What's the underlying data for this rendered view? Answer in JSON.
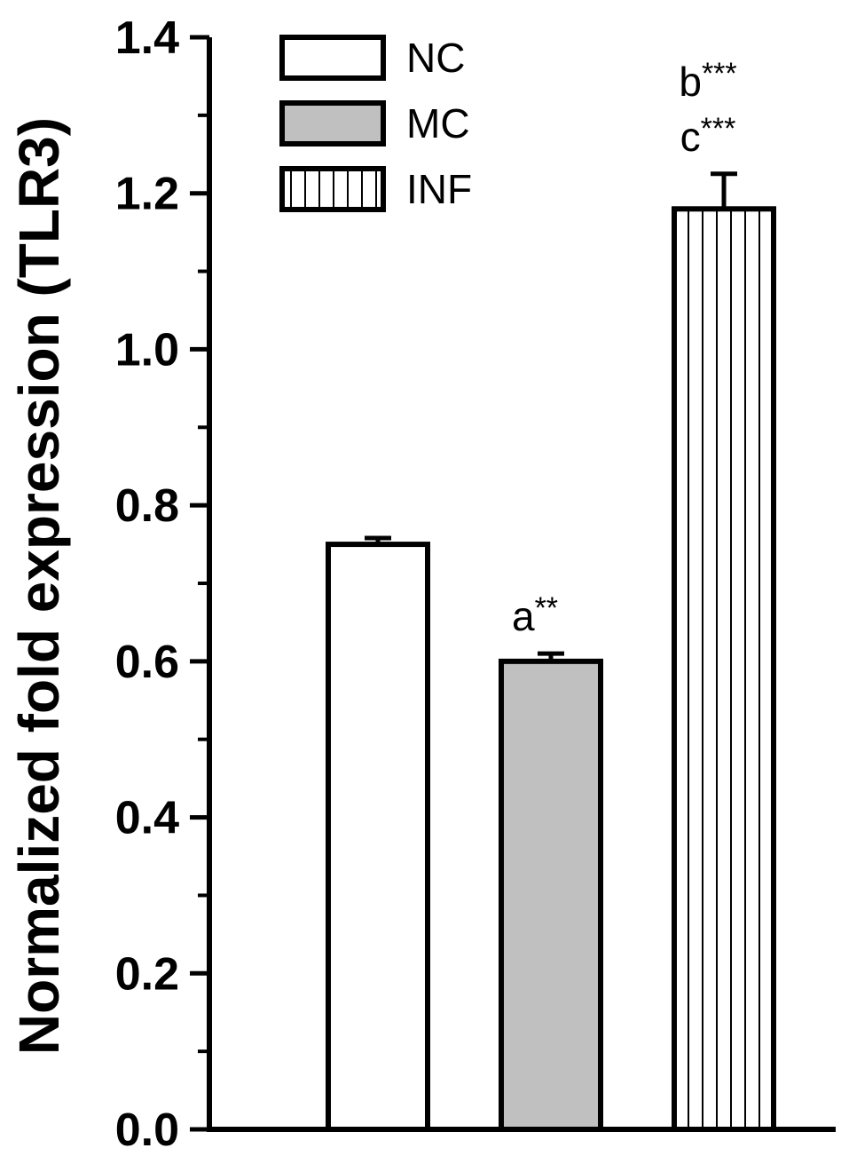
{
  "chart_data": {
    "type": "bar",
    "title": "",
    "xlabel": "",
    "ylabel": "Normalized fold expression (TLR3)",
    "ylim": [
      0,
      1.4
    ],
    "yticks": [
      "0.0",
      "0.2",
      "0.4",
      "0.6",
      "0.8",
      "1.0",
      "1.2",
      "1.4"
    ],
    "grid": false,
    "legend_position": "top-left",
    "categories": [
      "NC",
      "MC",
      "INF"
    ],
    "values": [
      0.75,
      0.6,
      1.18
    ],
    "errors": [
      0.008,
      0.01,
      0.045
    ],
    "fills": [
      "#ffffff",
      "#c0c0c0",
      "vertical-stripes"
    ],
    "legend": [
      {
        "label": "NC",
        "fill": "#ffffff"
      },
      {
        "label": "MC",
        "fill": "#c0c0c0"
      },
      {
        "label": "INF",
        "fill": "vertical-stripes"
      }
    ],
    "annotations": [
      {
        "category": "MC",
        "lines": [
          {
            "letter": "a",
            "stars": "**"
          }
        ]
      },
      {
        "category": "INF",
        "lines": [
          {
            "letter": "b",
            "stars": "***"
          },
          {
            "letter": "c",
            "stars": "***"
          }
        ]
      }
    ]
  }
}
